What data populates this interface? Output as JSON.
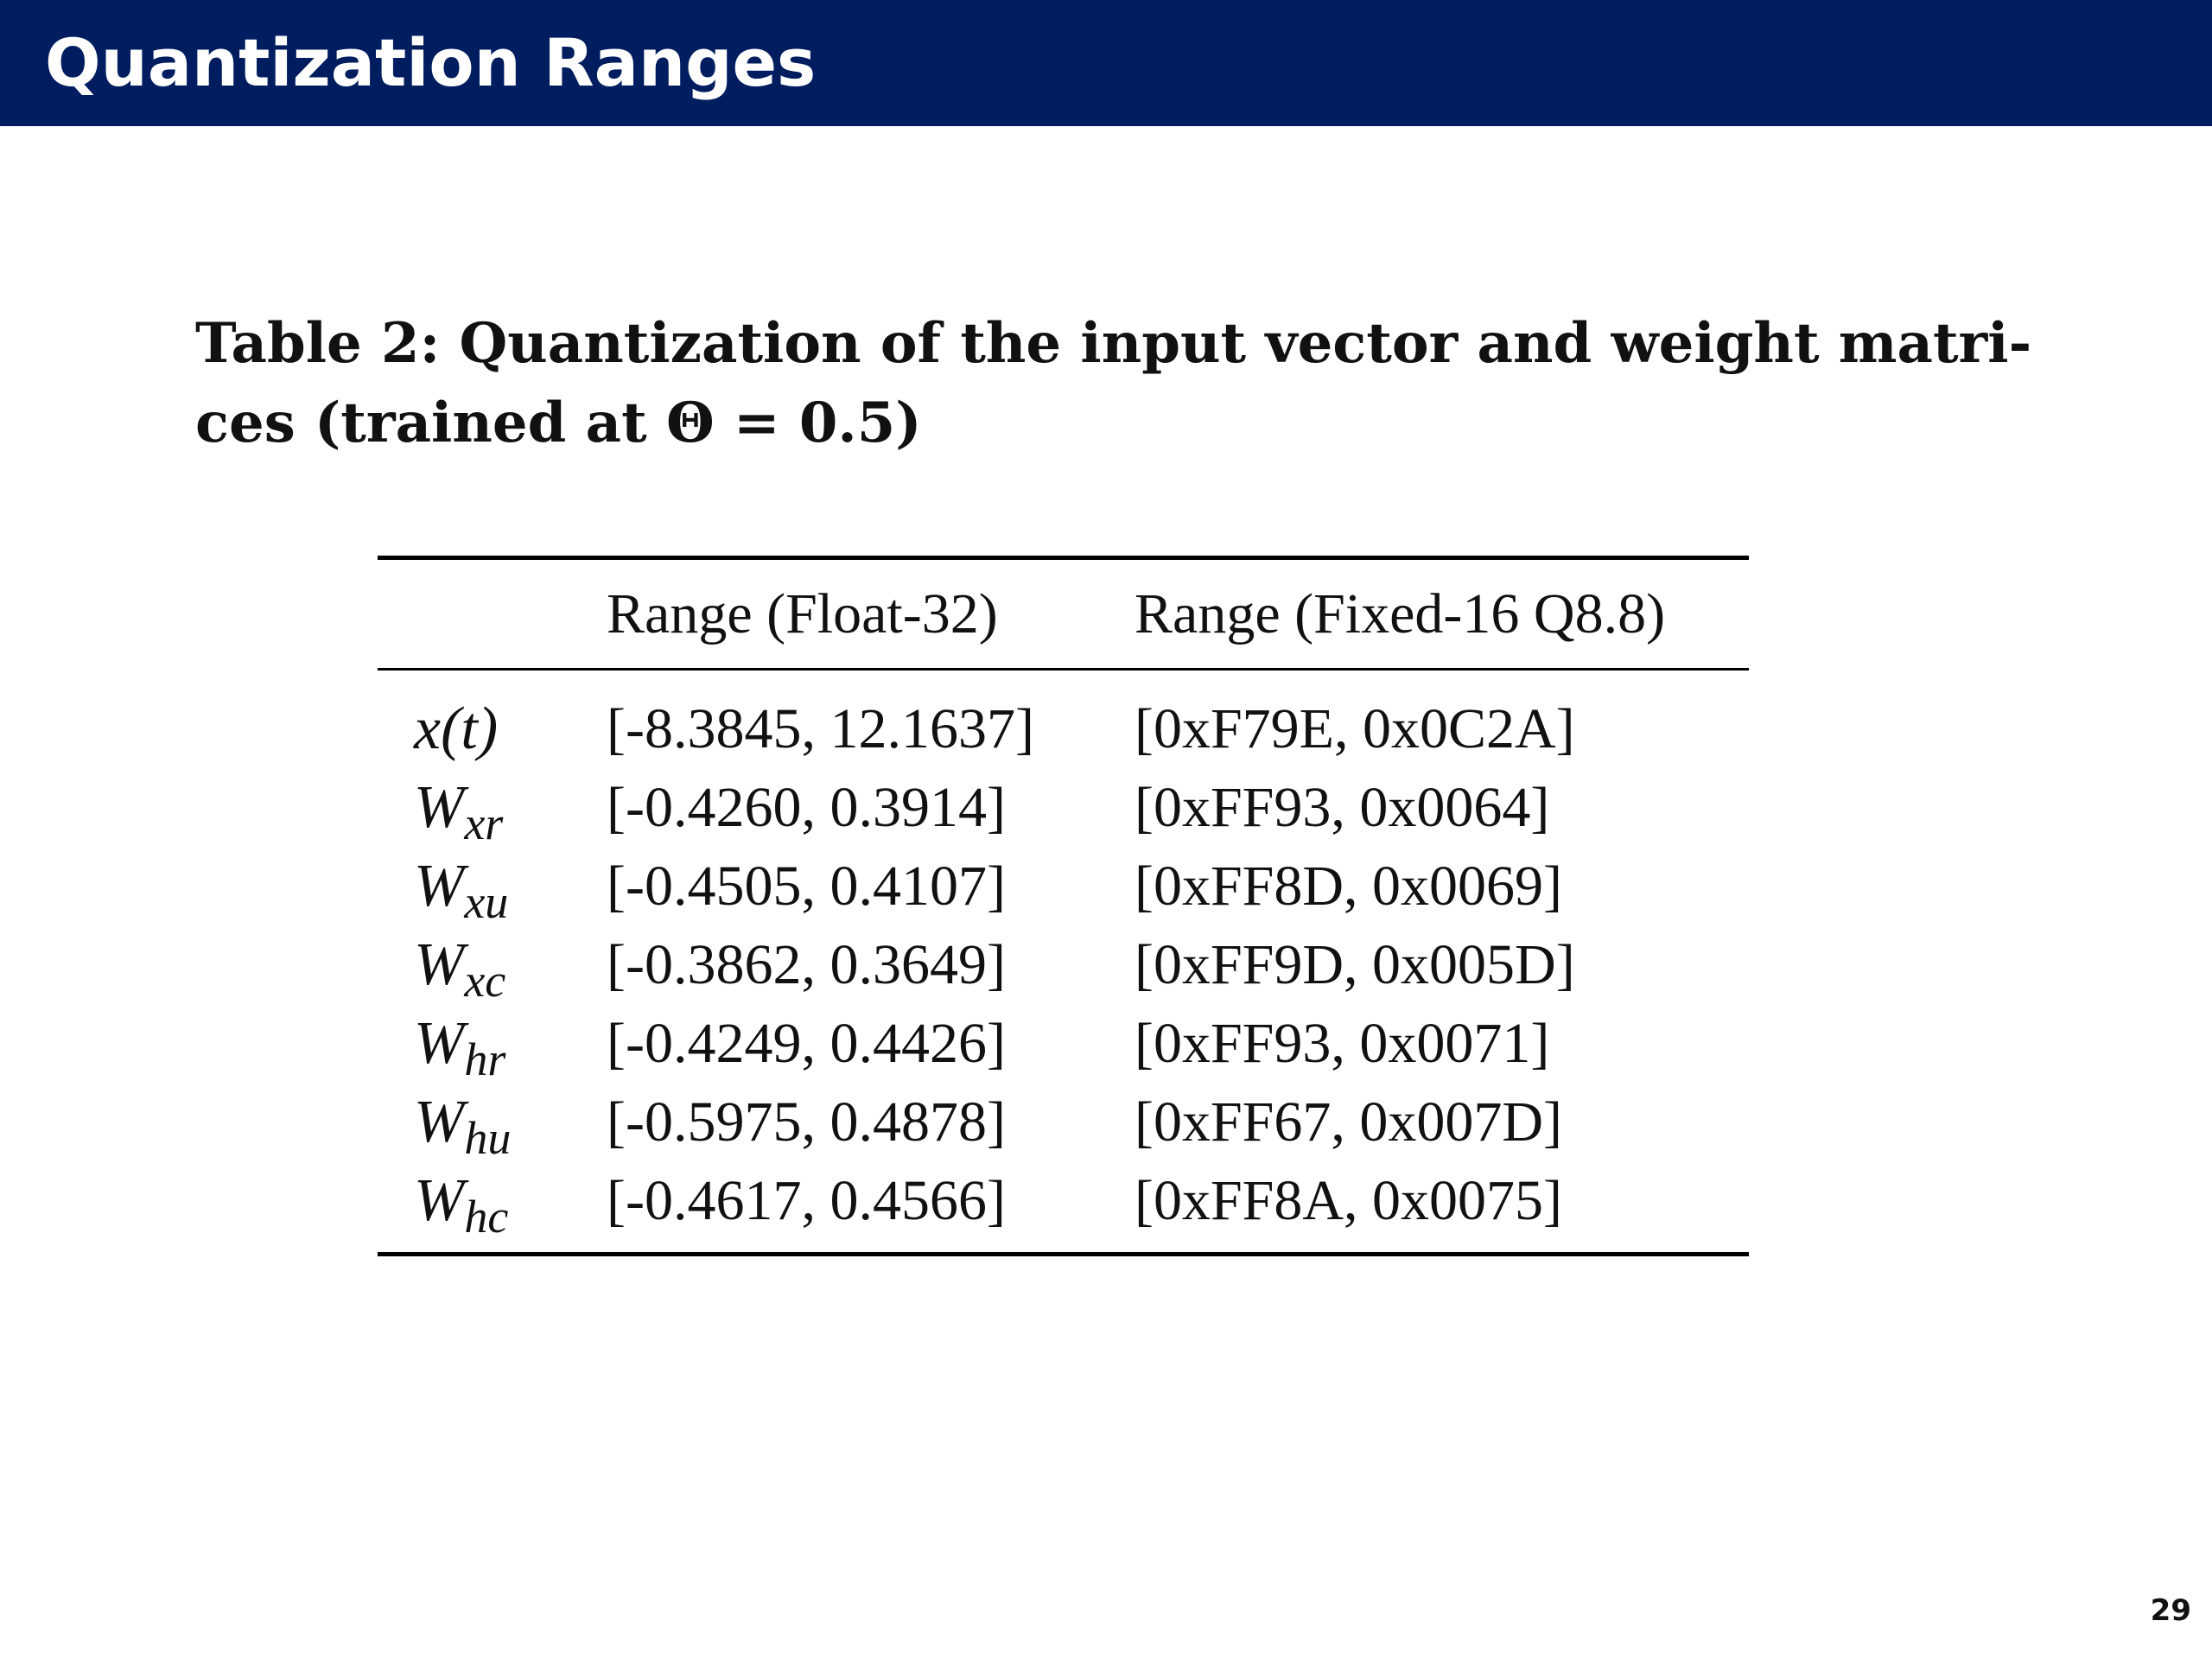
{
  "slide": {
    "title": "Quantization Ranges",
    "page_number": "29",
    "colors": {
      "header_bar": "#001e5f",
      "title_text": "#ffffff"
    }
  },
  "caption": {
    "line1": "Table 2: Quantization of the input vector and weight matri-",
    "line2": "ces (trained at Θ = 0.5)"
  },
  "table": {
    "headers": [
      "",
      "Range (Float-32)",
      "Range (Fixed-16 Q8.8)"
    ],
    "rows": [
      {
        "symbol": "x",
        "subscript": "",
        "arg": "(t)",
        "float_range": "[-8.3845, 12.1637]",
        "fixed_range": "[0xF79E, 0x0C2A]"
      },
      {
        "symbol": "W",
        "subscript": "xr",
        "arg": "",
        "float_range": "[-0.4260, 0.3914]",
        "fixed_range": "[0xFF93, 0x0064]"
      },
      {
        "symbol": "W",
        "subscript": "xu",
        "arg": "",
        "float_range": "[-0.4505, 0.4107]",
        "fixed_range": "[0xFF8D, 0x0069]"
      },
      {
        "symbol": "W",
        "subscript": "xc",
        "arg": "",
        "float_range": "[-0.3862, 0.3649]",
        "fixed_range": "[0xFF9D, 0x005D]"
      },
      {
        "symbol": "W",
        "subscript": "hr",
        "arg": "",
        "float_range": "[-0.4249, 0.4426]",
        "fixed_range": "[0xFF93, 0x0071]"
      },
      {
        "symbol": "W",
        "subscript": "hu",
        "arg": "",
        "float_range": "[-0.5975, 0.4878]",
        "fixed_range": "[0xFF67, 0x007D]"
      },
      {
        "symbol": "W",
        "subscript": "hc",
        "arg": "",
        "float_range": "[-0.4617, 0.4566]",
        "fixed_range": "[0xFF8A, 0x0075]"
      }
    ]
  }
}
